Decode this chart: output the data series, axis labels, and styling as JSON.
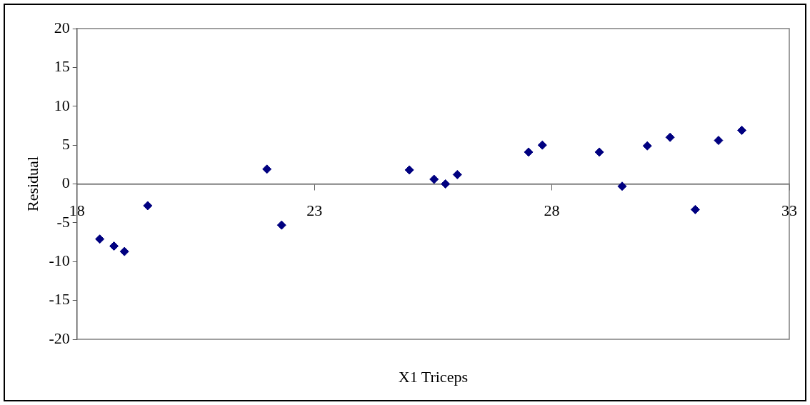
{
  "chart_data": {
    "type": "scatter",
    "xlabel": "X1 Triceps",
    "ylabel": "Residual",
    "xlim": [
      18,
      33
    ],
    "xticks": [
      18,
      23,
      28,
      33
    ],
    "ylim": [
      -20,
      20
    ],
    "yticks": [
      -20,
      -15,
      -10,
      -5,
      0,
      5,
      10,
      15,
      20
    ],
    "grid": false,
    "legend": false,
    "marker": "diamond",
    "series": [
      {
        "color": "#000080",
        "x": [
          18.48,
          18.78,
          19.0,
          19.49,
          22.0,
          22.31,
          25.0,
          25.52,
          25.76,
          26.01,
          27.51,
          27.8,
          29.0,
          29.48,
          30.01,
          30.49,
          31.02,
          31.51,
          32.0
        ],
        "values": [
          -7.1,
          -8.0,
          -8.7,
          -2.8,
          1.9,
          -5.3,
          1.8,
          0.6,
          0,
          1.2,
          4.1,
          5.0,
          4.1,
          -0.3,
          4.9,
          6.0,
          -3.3,
          5.6,
          6.9
        ]
      }
    ]
  }
}
